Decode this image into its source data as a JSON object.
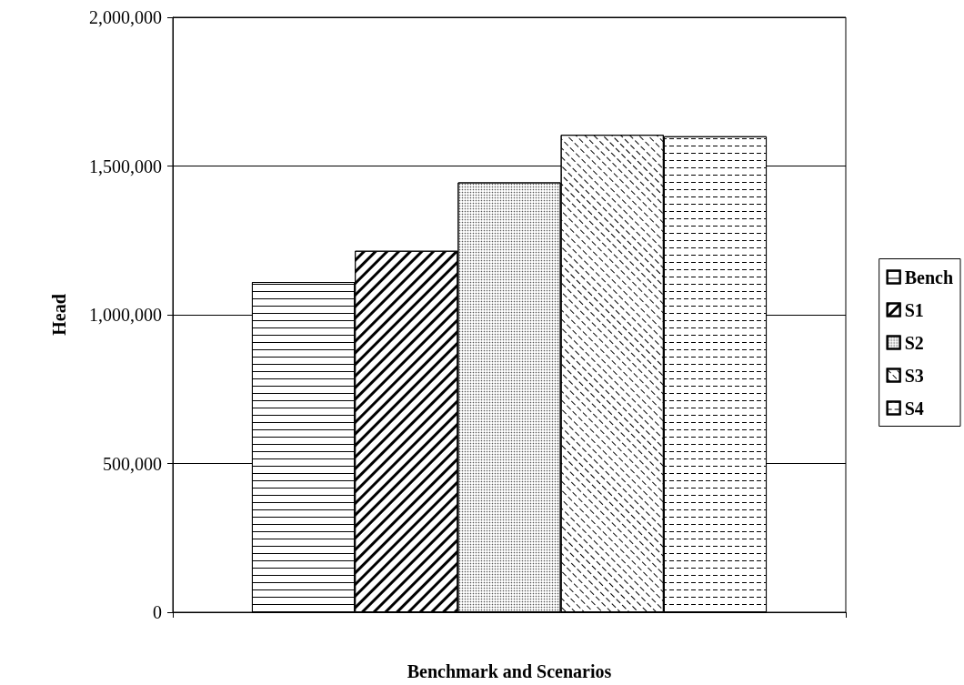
{
  "chart_data": {
    "type": "bar",
    "xlabel": "Benchmark and Scenarios",
    "ylabel": "Head",
    "categories": [
      null
    ],
    "series": [
      {
        "name": "Bench",
        "color": "#ffffff",
        "values": [
          1110000
        ]
      },
      {
        "name": "S1",
        "color": "#ffffff",
        "values": [
          1215000
        ]
      },
      {
        "name": "S2",
        "color": "#ffffff",
        "values": [
          1445000
        ]
      },
      {
        "name": "S3",
        "color": "#ffffff",
        "values": [
          1605000
        ]
      },
      {
        "name": "S4",
        "color": "#ffffff",
        "values": [
          1600000
        ]
      }
    ],
    "ylim": [
      0,
      2000000
    ],
    "yticks": [
      0,
      {
        "value": 500000,
        "label": "500,000"
      },
      {
        "value": 1000000,
        "label": "1,000,000"
      },
      {
        "value": 1500000,
        "label": "1,500,000"
      },
      {
        "value": 2000000,
        "label": "2,000,000"
      }
    ],
    "grid": "y",
    "legend": "right"
  }
}
